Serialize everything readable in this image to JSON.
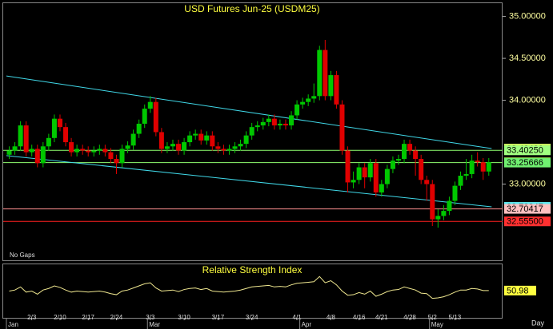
{
  "chart_data": {
    "type": "candlestick",
    "title": "USD Futures Jun-25 (USDM25)",
    "note": "No Gaps",
    "x_label": "Day",
    "categories": [
      null,
      null,
      null,
      null,
      "2/3",
      null,
      null,
      null,
      null,
      "2/10",
      null,
      null,
      null,
      null,
      "2/17",
      null,
      null,
      null,
      null,
      "2/24",
      null,
      null,
      null,
      null,
      null,
      "3/3",
      null,
      null,
      null,
      null,
      null,
      "3/10",
      null,
      null,
      null,
      null,
      null,
      "3/17",
      null,
      null,
      null,
      null,
      null,
      "3/24",
      null,
      null,
      null,
      null,
      null,
      null,
      null,
      "4/1",
      null,
      null,
      null,
      null,
      null,
      "4/8",
      null,
      null,
      null,
      null,
      "4/16",
      null,
      null,
      null,
      "4/21",
      null,
      null,
      null,
      null,
      "4/28",
      null,
      null,
      null,
      "5/2",
      null,
      null,
      null,
      "5/13",
      null,
      null,
      null,
      null,
      null,
      null
    ],
    "months": [
      "Jan",
      null,
      null,
      null,
      null,
      null,
      null,
      null,
      null,
      null,
      null,
      null,
      null,
      null,
      null,
      null,
      null,
      null,
      null,
      null,
      null,
      null,
      null,
      null,
      null,
      "Mar",
      null,
      null,
      null,
      null,
      null,
      null,
      null,
      null,
      null,
      null,
      null,
      null,
      null,
      null,
      null,
      null,
      null,
      null,
      null,
      null,
      null,
      null,
      null,
      null,
      null,
      null,
      "Apr",
      null,
      null,
      null,
      null,
      null,
      null,
      null,
      null,
      null,
      null,
      null,
      null,
      null,
      null,
      null,
      null,
      null,
      null,
      null,
      null,
      null,
      null,
      "May",
      null,
      null,
      null,
      null,
      null,
      null,
      null,
      null,
      null,
      null
    ],
    "open": [
      33.35,
      33.4,
      33.45,
      33.7,
      33.38,
      33.42,
      33.25,
      33.45,
      33.55,
      33.78,
      33.68,
      33.5,
      33.38,
      33.42,
      33.4,
      33.38,
      33.4,
      33.42,
      33.38,
      33.3,
      33.25,
      33.42,
      33.46,
      33.6,
      33.72,
      33.9,
      33.98,
      33.62,
      33.42,
      33.45,
      33.48,
      33.4,
      33.5,
      33.58,
      33.6,
      33.52,
      33.58,
      33.45,
      33.42,
      33.4,
      33.42,
      33.45,
      33.48,
      33.58,
      33.68,
      33.7,
      33.74,
      33.78,
      33.7,
      33.72,
      33.7,
      33.82,
      33.95,
      33.98,
      34.02,
      34.05,
      34.6,
      34.05,
      34.3,
      33.95,
      33.4,
      33.02,
      33.05,
      33.2,
      33.08,
      33.25,
      32.9,
      33.0,
      33.18,
      33.28,
      33.3,
      33.48,
      33.4,
      33.3,
      33.05,
      33.0,
      32.58,
      32.62,
      32.68,
      32.8,
      32.98,
      33.1,
      33.12,
      33.28,
      33.26,
      33.15
    ],
    "high": [
      33.45,
      33.5,
      33.75,
      33.75,
      33.47,
      33.47,
      33.5,
      33.6,
      33.83,
      33.83,
      33.73,
      33.55,
      33.47,
      33.47,
      33.45,
      33.45,
      33.47,
      33.47,
      33.43,
      33.35,
      33.47,
      33.51,
      33.65,
      33.77,
      33.95,
      34.05,
      34.03,
      33.67,
      33.5,
      33.53,
      33.53,
      33.55,
      33.63,
      33.65,
      33.65,
      33.63,
      33.63,
      33.5,
      33.47,
      33.47,
      33.5,
      33.53,
      33.63,
      33.73,
      33.75,
      33.79,
      33.83,
      33.83,
      33.77,
      33.77,
      33.87,
      34.0,
      34.03,
      34.07,
      34.2,
      34.65,
      34.72,
      34.35,
      34.35,
      34.0,
      33.45,
      33.15,
      33.25,
      33.25,
      33.3,
      33.3,
      33.05,
      33.23,
      33.33,
      33.35,
      33.53,
      33.53,
      33.45,
      33.35,
      33.1,
      33.05,
      32.7,
      32.75,
      32.85,
      33.03,
      33.15,
      33.3,
      33.35,
      33.38,
      33.31,
      33.31
    ],
    "low": [
      33.3,
      33.35,
      33.4,
      33.33,
      33.33,
      33.2,
      33.2,
      33.4,
      33.5,
      33.63,
      33.45,
      33.33,
      33.33,
      33.35,
      33.33,
      33.33,
      33.35,
      33.33,
      33.25,
      33.12,
      33.2,
      33.37,
      33.41,
      33.55,
      33.67,
      33.85,
      33.57,
      33.37,
      33.37,
      33.4,
      33.35,
      33.35,
      33.45,
      33.53,
      33.47,
      33.47,
      33.4,
      33.37,
      33.35,
      33.35,
      33.37,
      33.4,
      33.43,
      33.53,
      33.63,
      33.65,
      33.69,
      33.65,
      33.65,
      33.65,
      33.65,
      33.77,
      33.9,
      33.93,
      33.97,
      34.0,
      34.0,
      34.0,
      33.9,
      33.35,
      32.9,
      32.95,
      33.0,
      32.95,
      33.03,
      32.85,
      32.85,
      32.95,
      33.13,
      33.23,
      33.25,
      33.35,
      33.1,
      33.0,
      32.8,
      32.5,
      32.48,
      32.57,
      32.63,
      32.75,
      32.93,
      33.05,
      33.07,
      33.21,
      33.05,
      33.1
    ],
    "close": [
      33.4,
      33.45,
      33.7,
      33.38,
      33.42,
      33.25,
      33.45,
      33.55,
      33.78,
      33.68,
      33.5,
      33.38,
      33.42,
      33.4,
      33.38,
      33.4,
      33.42,
      33.38,
      33.3,
      33.25,
      33.42,
      33.46,
      33.6,
      33.72,
      33.9,
      33.98,
      33.62,
      33.42,
      33.45,
      33.48,
      33.4,
      33.5,
      33.58,
      33.6,
      33.52,
      33.58,
      33.45,
      33.42,
      33.4,
      33.42,
      33.45,
      33.48,
      33.58,
      33.68,
      33.7,
      33.74,
      33.78,
      33.7,
      33.72,
      33.7,
      33.82,
      33.95,
      33.98,
      34.02,
      34.05,
      34.6,
      34.05,
      34.3,
      33.95,
      33.4,
      33.02,
      33.05,
      33.2,
      33.08,
      33.25,
      32.9,
      33.0,
      33.18,
      33.28,
      33.3,
      33.48,
      33.4,
      33.3,
      33.05,
      33.0,
      32.58,
      32.62,
      32.68,
      32.8,
      32.98,
      33.1,
      33.12,
      33.28,
      33.26,
      33.15,
      33.26
    ],
    "up_color": "#00c800",
    "down_color": "#e00000",
    "ylim": [
      32.1,
      35.12
    ],
    "yticks": [
      {
        "value": 35,
        "label": "35.00000"
      },
      {
        "value": 34.5,
        "label": "34.50000"
      },
      {
        "value": 34,
        "label": "34.00000"
      },
      {
        "value": 33,
        "label": "33.00000"
      }
    ],
    "trendlines": [
      {
        "color": "#40d8e8",
        "x": [
          0,
          86
        ],
        "y": [
          34.29,
          33.4242
        ]
      },
      {
        "color": "#40d8e8",
        "x": [
          0,
          86
        ],
        "y": [
          33.34,
          32.72847
        ]
      }
    ],
    "levels": [
      {
        "value": 33.4025,
        "color": "#90ff70"
      },
      {
        "value": 33.25666,
        "color": "#90ff70"
      },
      {
        "value": 32.70417,
        "color": "#ff9090"
      },
      {
        "value": 32.555,
        "color": "#ff2020"
      }
    ],
    "price_labels": [
      {
        "value": 33.4242,
        "label": "33.42420",
        "color": "#c8f060"
      },
      {
        "value": 33.4025,
        "label": "33.40250",
        "color": "#a0ff80"
      },
      {
        "value": 33.26,
        "label": "33.26000",
        "color": "#ffff40"
      },
      {
        "value": 33.25666,
        "label": "33.25666",
        "color": "#70f070"
      },
      {
        "value": 32.72847,
        "label": "32.72847",
        "color": "#60e8f0"
      },
      {
        "value": 32.70417,
        "label": "32.70417",
        "color": "#ffc0c0"
      },
      {
        "value": 32.555,
        "label": "32.55500",
        "color": "#ff3030"
      }
    ],
    "rsi": {
      "title": "Relative Strength Index",
      "color": "#f0e890",
      "ylim": [
        0,
        100
      ],
      "values": [
        50,
        52,
        58,
        48,
        50,
        44,
        52,
        55,
        60,
        57,
        52,
        48,
        50,
        49,
        48,
        49,
        50,
        48,
        45,
        43,
        50,
        52,
        56,
        60,
        64,
        66,
        56,
        50,
        51,
        52,
        49,
        53,
        55,
        56,
        53,
        55,
        50,
        49,
        48,
        49,
        50,
        52,
        55,
        58,
        59,
        60,
        61,
        58,
        59,
        58,
        62,
        65,
        66,
        67,
        68,
        78,
        66,
        70,
        62,
        50,
        42,
        43,
        47,
        44,
        50,
        40,
        44,
        49,
        52,
        53,
        58,
        55,
        52,
        46,
        45,
        36,
        37,
        39,
        43,
        48,
        52,
        52,
        55,
        54,
        51,
        50.98
      ],
      "last_label": {
        "value": 50.98,
        "label": "50.98"
      }
    }
  }
}
